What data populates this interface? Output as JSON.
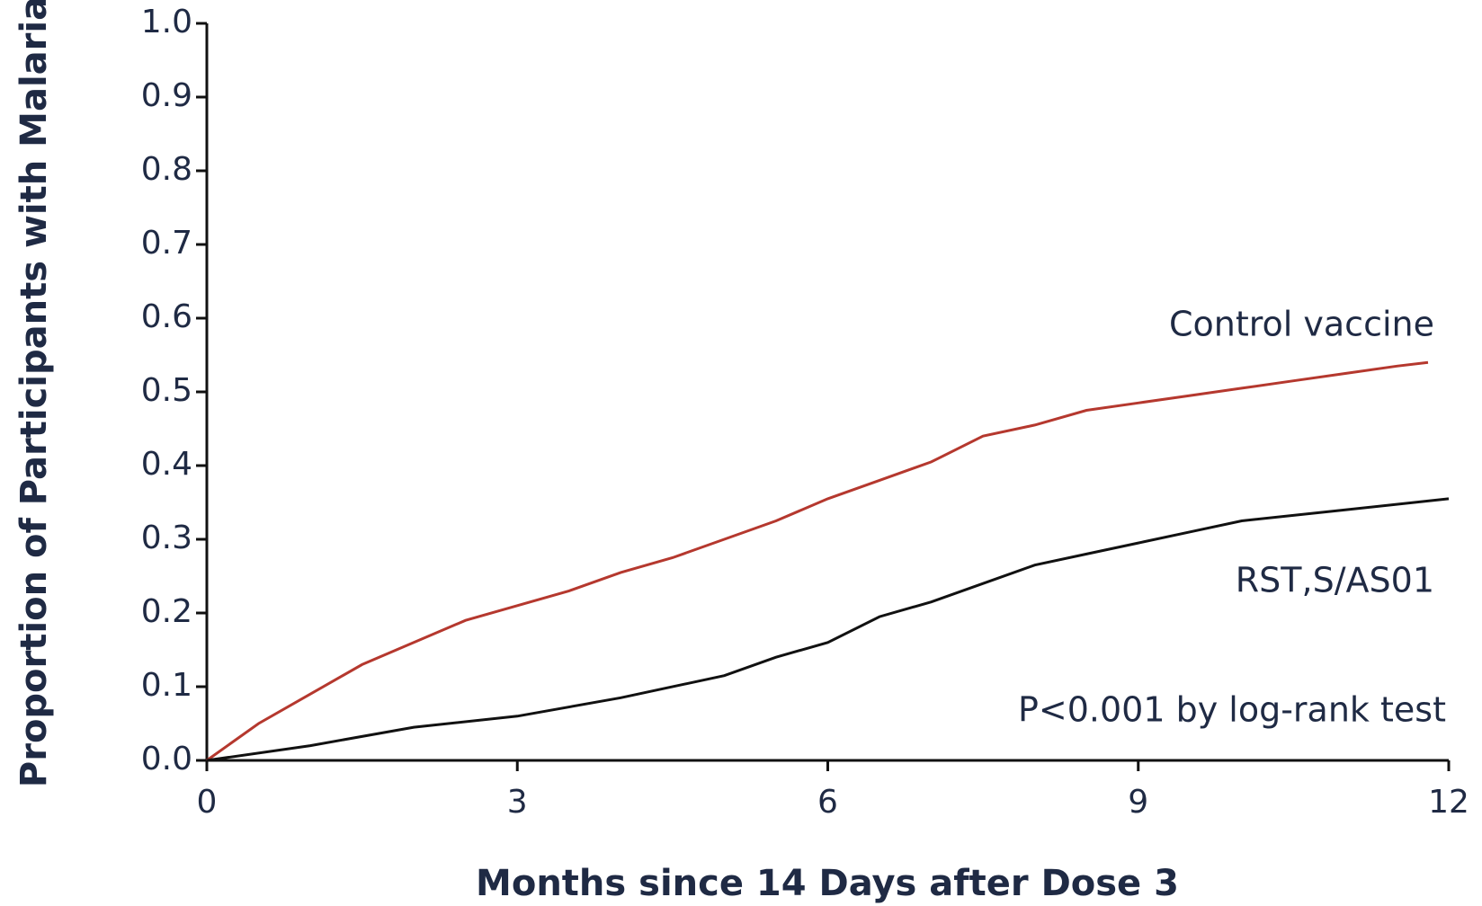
{
  "chart_data": {
    "type": "line",
    "xlabel": "Months since 14 Days after Dose 3",
    "ylabel": "Proportion of Participants with Malaria",
    "xlim": [
      0,
      12
    ],
    "xticks": [
      0,
      3,
      6,
      9,
      12
    ],
    "ylim": [
      0,
      1
    ],
    "yticks": [
      {
        "value": 0,
        "label": "0.0"
      },
      0.1,
      0.2,
      0.3,
      0.4,
      0.5,
      0.6,
      0.7,
      0.8,
      0.9,
      {
        "value": 1,
        "label": "1.0"
      }
    ],
    "series": [
      {
        "name": "Control vaccine",
        "color": "#b5382e",
        "x": [
          0,
          0.5,
          1,
          1.5,
          2,
          2.5,
          3,
          3.5,
          4,
          4.5,
          5,
          5.5,
          6,
          6.5,
          7,
          7.5,
          8,
          8.5,
          9,
          9.5,
          10,
          10.5,
          11,
          11.5,
          11.8
        ],
        "values": [
          0,
          0.05,
          0.09,
          0.13,
          0.16,
          0.19,
          0.21,
          0.23,
          0.255,
          0.275,
          0.3,
          0.325,
          0.355,
          0.38,
          0.405,
          0.44,
          0.455,
          0.475,
          0.485,
          0.495,
          0.505,
          0.515,
          0.525,
          0.535,
          0.54
        ]
      },
      {
        "name": "RST,S/AS01",
        "color": "#111111",
        "x": [
          0,
          1,
          2,
          3,
          4,
          5,
          5.5,
          6,
          6.5,
          7,
          7.5,
          8,
          8.5,
          9,
          9.5,
          10,
          11,
          12
        ],
        "values": [
          0,
          0.02,
          0.045,
          0.06,
          0.085,
          0.115,
          0.14,
          0.16,
          0.195,
          0.215,
          0.24,
          0.265,
          0.28,
          0.295,
          0.31,
          0.325,
          0.34,
          0.355
        ]
      }
    ],
    "annotations": [
      "P<0.001 by log-rank test"
    ]
  }
}
